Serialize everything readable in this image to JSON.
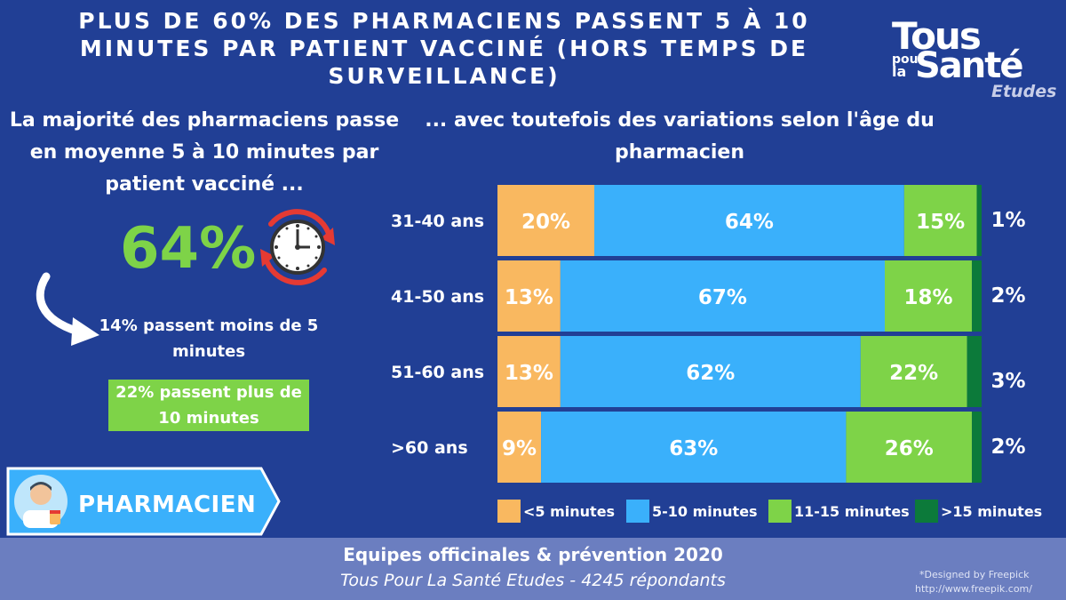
{
  "title": "PLUS DE 60% DES PHARMACIENS PASSENT 5 À 10 MINUTES PAR PATIENT VACCINÉ (HORS TEMPS DE SURVEILLANCE)",
  "logo": {
    "tous": "Tous",
    "pour": "pour",
    "la": "la",
    "sante": "Santé",
    "etudes": "Etudes"
  },
  "left": {
    "heading": "La majorité des pharmaciens passe en moyenne 5 à 10 minutes par patient vacciné ...",
    "big_percent": "64%",
    "less_text": "14% passent moins de 5 minutes",
    "more_text": "22% passent plus de 10 minutes",
    "clock_icon": "clock-refresh-icon",
    "arrow_icon": "curved-arrow-icon"
  },
  "badge": {
    "label": "PHARMACIEN",
    "icon": "pharmacist-avatar-icon"
  },
  "right_heading": "... avec toutefois des variations selon l'âge du pharmacien",
  "colors": {
    "lt5": "#f9b860",
    "m5_10": "#3ab0fb",
    "m11_15": "#7ed348",
    "gt15": "#0c7a3a",
    "accent_green": "#7ed348",
    "background": "#213f95",
    "footer": "#6b7ec0"
  },
  "chart_data": {
    "type": "bar",
    "orientation": "horizontal",
    "stacked": true,
    "categories": [
      "31-40 ans",
      "41-50 ans",
      "51-60 ans",
      ">60 ans"
    ],
    "series": [
      {
        "name": "<5 minutes",
        "values": [
          20,
          13,
          13,
          9
        ]
      },
      {
        "name": "5-10 minutes",
        "values": [
          64,
          67,
          62,
          63
        ]
      },
      {
        "name": "11-15 minutes",
        "values": [
          15,
          18,
          22,
          26
        ]
      },
      {
        "name": ">15 minutes",
        "values": [
          1,
          2,
          3,
          2
        ]
      }
    ],
    "labels": [
      [
        "20%",
        "64%",
        "15%",
        "1%"
      ],
      [
        "13%",
        "67%",
        "18%",
        "2%"
      ],
      [
        "13%",
        "62%",
        "22%",
        "3%"
      ],
      [
        "9%",
        "63%",
        "26%",
        "2%"
      ]
    ],
    "legend_position": "bottom",
    "xlim": [
      0,
      100
    ]
  },
  "footer": {
    "title": "Equipes officinales & prévention 2020",
    "source": "Tous Pour La Santé Etudes - 4245 répondants",
    "credit1": "*Designed by Freepick",
    "credit2": "http://www.freepik.com/"
  }
}
